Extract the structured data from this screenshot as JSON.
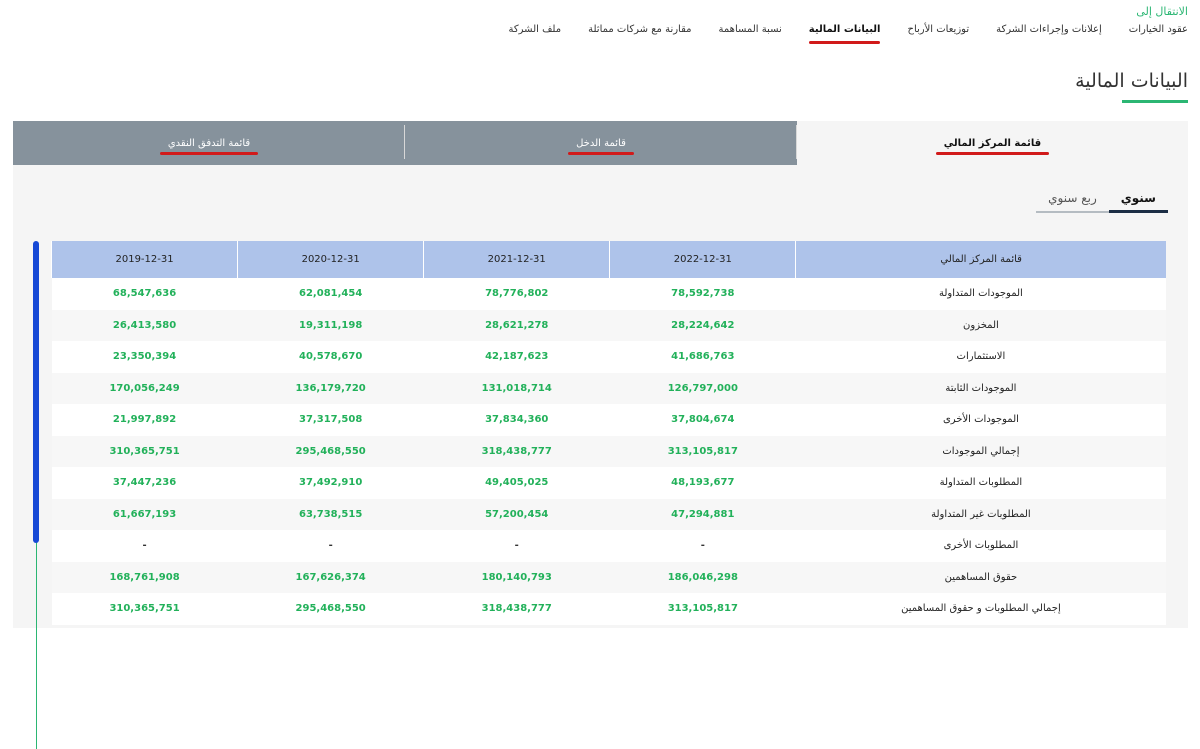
{
  "jump_label": "الانتقال إلى",
  "nav": [
    {
      "label": "عقود الخيارات",
      "active": false
    },
    {
      "label": "إعلانات وإجراءات الشركة",
      "active": false
    },
    {
      "label": "توزيعات الأرباح",
      "active": false
    },
    {
      "label": "البيانات المالية",
      "active": true
    },
    {
      "label": "نسبة المساهمة",
      "active": false
    },
    {
      "label": "مقارنة مع شركات مماثلة",
      "active": false
    },
    {
      "label": "ملف الشركة",
      "active": false
    }
  ],
  "page_title": "البيانات المالية",
  "statement_tabs": {
    "balance": "قائمة المركز المالي",
    "income": "قائمة الدخل",
    "cashflow": "قائمة التدفق النقدي"
  },
  "period": {
    "annual": "سنوي",
    "quarterly": "ربع سنوي"
  },
  "table": {
    "headers": [
      "قائمة المركز المالي",
      "2022-12-31",
      "2021-12-31",
      "2020-12-31",
      "2019-12-31"
    ],
    "rows": [
      [
        "الموجودات المتداولة",
        "78,592,738",
        "78,776,802",
        "62,081,454",
        "68,547,636"
      ],
      [
        "المخزون",
        "28,224,642",
        "28,621,278",
        "19,311,198",
        "26,413,580"
      ],
      [
        "الاستثمارات",
        "41,686,763",
        "42,187,623",
        "40,578,670",
        "23,350,394"
      ],
      [
        "الموجودات الثابتة",
        "126,797,000",
        "131,018,714",
        "136,179,720",
        "170,056,249"
      ],
      [
        "الموجودات الأخرى",
        "37,804,674",
        "37,834,360",
        "37,317,508",
        "21,997,892"
      ],
      [
        "إجمالي الموجودات",
        "313,105,817",
        "318,438,777",
        "295,468,550",
        "310,365,751"
      ],
      [
        "المطلوبات المتداولة",
        "48,193,677",
        "49,405,025",
        "37,492,910",
        "37,447,236"
      ],
      [
        "المطلوبات غير المتداولة",
        "47,294,881",
        "57,200,454",
        "63,738,515",
        "61,667,193"
      ],
      [
        "المطلوبات الأخرى",
        "-",
        "-",
        "-",
        "-"
      ],
      [
        "حقوق المساهمين",
        "186,046,298",
        "180,140,793",
        "167,626,374",
        "168,761,908"
      ],
      [
        "إجمالي المطلوبات و حقوق المساهمين",
        "313,105,817",
        "318,438,777",
        "295,468,550",
        "310,365,751"
      ]
    ]
  },
  "colors": {
    "accent_green": "#2bb673",
    "active_underline": "#d11a1a",
    "header_blue": "#aec3ea",
    "tab_gray": "#86929c",
    "scroll_blue": "#1649d6"
  }
}
